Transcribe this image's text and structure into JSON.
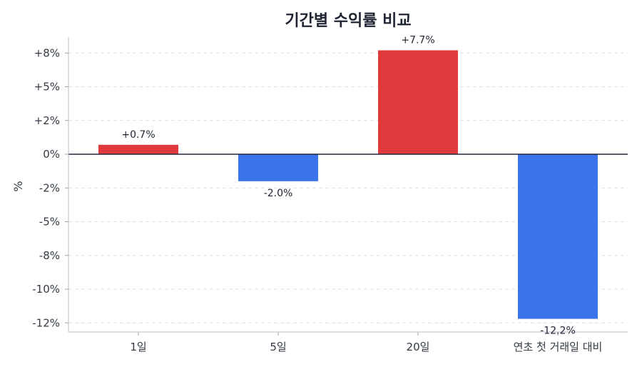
{
  "chart_data": {
    "type": "bar",
    "title": "기간별 수익률 비교",
    "xlabel": "",
    "ylabel": "%",
    "categories": [
      "1일",
      "5일",
      "20일",
      "연초 첫 거래일 대비"
    ],
    "values": [
      0.7,
      -2.0,
      7.7,
      -12.2
    ],
    "value_labels": [
      "+0.7%",
      "-2.0%",
      "+7.7%",
      "-12.2%"
    ],
    "ylim": [
      -12.5,
      9.2
    ],
    "y_ticks": [
      {
        "value": 7.5,
        "label": "+8%"
      },
      {
        "value": 5.0,
        "label": "+5%"
      },
      {
        "value": 2.5,
        "label": "+2%"
      },
      {
        "value": 0.0,
        "label": "0%"
      },
      {
        "value": -2.5,
        "label": "-2%"
      },
      {
        "value": -5.0,
        "label": "-5%"
      },
      {
        "value": -7.5,
        "label": "-8%"
      },
      {
        "value": -10.0,
        "label": "-10%"
      },
      {
        "value": -12.5,
        "label": "-12%"
      }
    ],
    "grid": true,
    "colors": {
      "positive": "#e03a3c",
      "negative": "#3b73ea"
    }
  }
}
